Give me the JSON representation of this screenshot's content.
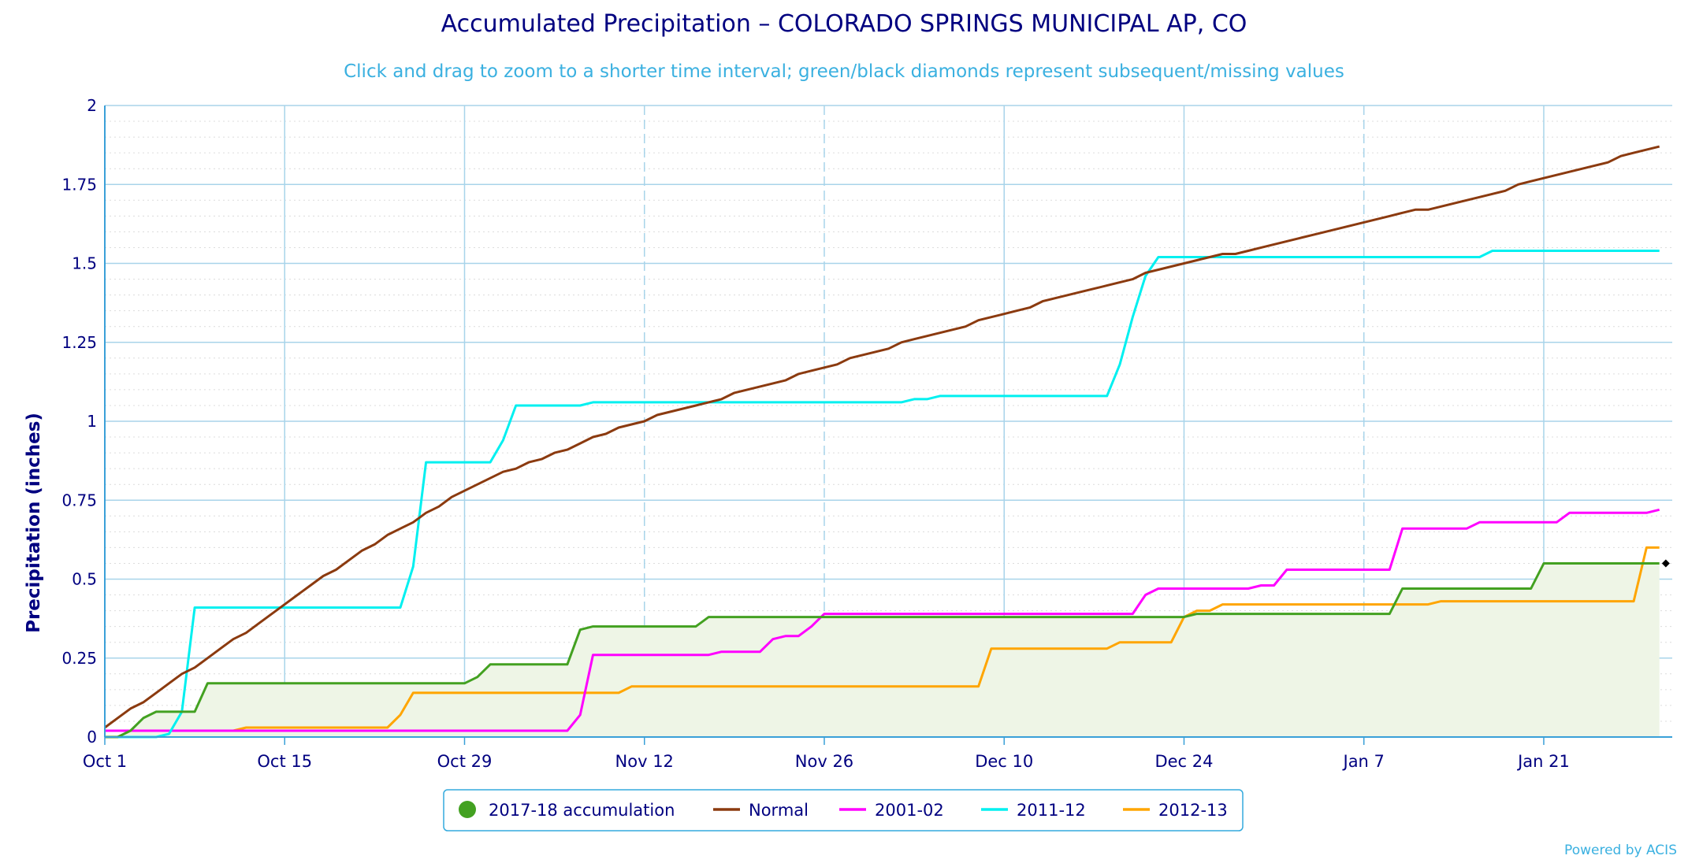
{
  "chart_data": {
    "type": "line",
    "title": "Accumulated Precipitation – COLORADO SPRINGS MUNICIPAL AP, CO",
    "subtitle": "Click and drag to zoom to a shorter time interval; green/black diamonds represent subsequent/missing values",
    "ylabel": "Precipitation (inches)",
    "xlabel": "",
    "credit": "Powered by ACIS",
    "xlim": [
      0,
      122
    ],
    "ylim": [
      0,
      2
    ],
    "grid": true,
    "legend_position": "bottom-center",
    "x_ticks": [
      {
        "day": 0,
        "label": "Oct 1"
      },
      {
        "day": 14,
        "label": "Oct 15"
      },
      {
        "day": 28,
        "label": "Oct 29"
      },
      {
        "day": 42,
        "label": "Nov 12"
      },
      {
        "day": 56,
        "label": "Nov 26"
      },
      {
        "day": 70,
        "label": "Dec 10"
      },
      {
        "day": 84,
        "label": "Dec 24"
      },
      {
        "day": 98,
        "label": "Jan 7"
      },
      {
        "day": 112,
        "label": "Jan 21"
      }
    ],
    "y_ticks": [
      {
        "value": 0,
        "label": "0"
      },
      {
        "value": 0.25,
        "label": "0.25"
      },
      {
        "value": 0.5,
        "label": "0.5"
      },
      {
        "value": 0.75,
        "label": "0.75"
      },
      {
        "value": 1,
        "label": "1"
      },
      {
        "value": 1.25,
        "label": "1.25"
      },
      {
        "value": 1.5,
        "label": "1.5"
      },
      {
        "value": 1.75,
        "label": "1.75"
      },
      {
        "value": 2,
        "label": "2"
      }
    ],
    "series": [
      {
        "name": "2017-18 accumulation",
        "color": "#43a121",
        "fill": "#eef5e6",
        "marker": "circle",
        "area": true,
        "points": [
          [
            0,
            0
          ],
          [
            1,
            0
          ],
          [
            2,
            0.02
          ],
          [
            3,
            0.06
          ],
          [
            4,
            0.08
          ],
          [
            7,
            0.08
          ],
          [
            8,
            0.17
          ],
          [
            28,
            0.17
          ],
          [
            29,
            0.19
          ],
          [
            30,
            0.23
          ],
          [
            36,
            0.23
          ],
          [
            37,
            0.34
          ],
          [
            38,
            0.35
          ],
          [
            46,
            0.35
          ],
          [
            47,
            0.38
          ],
          [
            84,
            0.38
          ],
          [
            85,
            0.39
          ],
          [
            100,
            0.39
          ],
          [
            101,
            0.47
          ],
          [
            111,
            0.47
          ],
          [
            112,
            0.55
          ],
          [
            121,
            0.55
          ]
        ]
      },
      {
        "name": "Normal",
        "color": "#8b3a0f",
        "marker": "line",
        "points": [
          [
            0,
            0.03
          ],
          [
            1,
            0.06
          ],
          [
            2,
            0.09
          ],
          [
            3,
            0.11
          ],
          [
            4,
            0.14
          ],
          [
            5,
            0.17
          ],
          [
            6,
            0.2
          ],
          [
            7,
            0.22
          ],
          [
            8,
            0.25
          ],
          [
            9,
            0.28
          ],
          [
            10,
            0.31
          ],
          [
            11,
            0.33
          ],
          [
            12,
            0.36
          ],
          [
            13,
            0.39
          ],
          [
            14,
            0.42
          ],
          [
            15,
            0.45
          ],
          [
            16,
            0.48
          ],
          [
            17,
            0.51
          ],
          [
            18,
            0.53
          ],
          [
            19,
            0.56
          ],
          [
            20,
            0.59
          ],
          [
            21,
            0.61
          ],
          [
            22,
            0.64
          ],
          [
            23,
            0.66
          ],
          [
            24,
            0.68
          ],
          [
            25,
            0.71
          ],
          [
            26,
            0.73
          ],
          [
            27,
            0.76
          ],
          [
            28,
            0.78
          ],
          [
            29,
            0.8
          ],
          [
            30,
            0.82
          ],
          [
            31,
            0.84
          ],
          [
            32,
            0.85
          ],
          [
            33,
            0.87
          ],
          [
            34,
            0.88
          ],
          [
            35,
            0.9
          ],
          [
            36,
            0.91
          ],
          [
            37,
            0.93
          ],
          [
            38,
            0.95
          ],
          [
            39,
            0.96
          ],
          [
            40,
            0.98
          ],
          [
            41,
            0.99
          ],
          [
            42,
            1.0
          ],
          [
            43,
            1.02
          ],
          [
            44,
            1.03
          ],
          [
            45,
            1.04
          ],
          [
            46,
            1.05
          ],
          [
            47,
            1.06
          ],
          [
            48,
            1.07
          ],
          [
            49,
            1.09
          ],
          [
            50,
            1.1
          ],
          [
            51,
            1.11
          ],
          [
            52,
            1.12
          ],
          [
            53,
            1.13
          ],
          [
            54,
            1.15
          ],
          [
            55,
            1.16
          ],
          [
            56,
            1.17
          ],
          [
            57,
            1.18
          ],
          [
            58,
            1.2
          ],
          [
            59,
            1.21
          ],
          [
            60,
            1.22
          ],
          [
            61,
            1.23
          ],
          [
            62,
            1.25
          ],
          [
            63,
            1.26
          ],
          [
            64,
            1.27
          ],
          [
            65,
            1.28
          ],
          [
            66,
            1.29
          ],
          [
            67,
            1.3
          ],
          [
            68,
            1.32
          ],
          [
            69,
            1.33
          ],
          [
            70,
            1.34
          ],
          [
            71,
            1.35
          ],
          [
            72,
            1.36
          ],
          [
            73,
            1.38
          ],
          [
            74,
            1.39
          ],
          [
            75,
            1.4
          ],
          [
            76,
            1.41
          ],
          [
            77,
            1.42
          ],
          [
            78,
            1.43
          ],
          [
            79,
            1.44
          ],
          [
            80,
            1.45
          ],
          [
            81,
            1.47
          ],
          [
            82,
            1.48
          ],
          [
            83,
            1.49
          ],
          [
            84,
            1.5
          ],
          [
            85,
            1.51
          ],
          [
            86,
            1.52
          ],
          [
            87,
            1.53
          ],
          [
            88,
            1.53
          ],
          [
            89,
            1.54
          ],
          [
            90,
            1.55
          ],
          [
            91,
            1.56
          ],
          [
            92,
            1.57
          ],
          [
            93,
            1.58
          ],
          [
            94,
            1.59
          ],
          [
            95,
            1.6
          ],
          [
            96,
            1.61
          ],
          [
            97,
            1.62
          ],
          [
            98,
            1.63
          ],
          [
            99,
            1.64
          ],
          [
            100,
            1.65
          ],
          [
            101,
            1.66
          ],
          [
            102,
            1.67
          ],
          [
            103,
            1.67
          ],
          [
            104,
            1.68
          ],
          [
            105,
            1.69
          ],
          [
            106,
            1.7
          ],
          [
            107,
            1.71
          ],
          [
            108,
            1.72
          ],
          [
            109,
            1.73
          ],
          [
            110,
            1.75
          ],
          [
            111,
            1.76
          ],
          [
            112,
            1.77
          ],
          [
            113,
            1.78
          ],
          [
            114,
            1.79
          ],
          [
            115,
            1.8
          ],
          [
            116,
            1.81
          ],
          [
            117,
            1.82
          ],
          [
            118,
            1.84
          ],
          [
            119,
            1.85
          ],
          [
            120,
            1.86
          ],
          [
            121,
            1.87
          ]
        ]
      },
      {
        "name": "2001-02",
        "color": "#ff00ff",
        "marker": "line",
        "points": [
          [
            0,
            0.02
          ],
          [
            36,
            0.02
          ],
          [
            37,
            0.07
          ],
          [
            38,
            0.26
          ],
          [
            47,
            0.26
          ],
          [
            48,
            0.27
          ],
          [
            51,
            0.27
          ],
          [
            52,
            0.31
          ],
          [
            53,
            0.32
          ],
          [
            54,
            0.32
          ],
          [
            55,
            0.35
          ],
          [
            56,
            0.39
          ],
          [
            80,
            0.39
          ],
          [
            81,
            0.45
          ],
          [
            82,
            0.47
          ],
          [
            89,
            0.47
          ],
          [
            90,
            0.48
          ],
          [
            91,
            0.48
          ],
          [
            92,
            0.53
          ],
          [
            100,
            0.53
          ],
          [
            101,
            0.66
          ],
          [
            106,
            0.66
          ],
          [
            107,
            0.68
          ],
          [
            113,
            0.68
          ],
          [
            114,
            0.71
          ],
          [
            120,
            0.71
          ],
          [
            121,
            0.72
          ]
        ]
      },
      {
        "name": "2011-12",
        "color": "#00f0f0",
        "marker": "line",
        "points": [
          [
            0,
            0
          ],
          [
            4,
            0
          ],
          [
            5,
            0.01
          ],
          [
            6,
            0.08
          ],
          [
            7,
            0.41
          ],
          [
            23,
            0.41
          ],
          [
            24,
            0.54
          ],
          [
            25,
            0.87
          ],
          [
            30,
            0.87
          ],
          [
            31,
            0.94
          ],
          [
            32,
            1.05
          ],
          [
            37,
            1.05
          ],
          [
            38,
            1.06
          ],
          [
            62,
            1.06
          ],
          [
            63,
            1.07
          ],
          [
            64,
            1.07
          ],
          [
            65,
            1.08
          ],
          [
            78,
            1.08
          ],
          [
            79,
            1.18
          ],
          [
            80,
            1.33
          ],
          [
            81,
            1.46
          ],
          [
            82,
            1.52
          ],
          [
            107,
            1.52
          ],
          [
            108,
            1.54
          ],
          [
            121,
            1.54
          ]
        ]
      },
      {
        "name": "2012-13",
        "color": "#ffa500",
        "marker": "line",
        "points": [
          [
            0,
            0.02
          ],
          [
            10,
            0.02
          ],
          [
            11,
            0.03
          ],
          [
            22,
            0.03
          ],
          [
            23,
            0.07
          ],
          [
            24,
            0.14
          ],
          [
            40,
            0.14
          ],
          [
            41,
            0.16
          ],
          [
            68,
            0.16
          ],
          [
            69,
            0.28
          ],
          [
            78,
            0.28
          ],
          [
            79,
            0.3
          ],
          [
            83,
            0.3
          ],
          [
            84,
            0.38
          ],
          [
            85,
            0.4
          ],
          [
            86,
            0.4
          ],
          [
            87,
            0.42
          ],
          [
            103,
            0.42
          ],
          [
            104,
            0.43
          ],
          [
            119,
            0.43
          ],
          [
            120,
            0.6
          ],
          [
            121,
            0.6
          ]
        ]
      }
    ],
    "end_marker": {
      "series": "2017-18 accumulation",
      "day": 121.5,
      "value": 0.55,
      "shape": "diamond",
      "color": "#000000"
    }
  }
}
